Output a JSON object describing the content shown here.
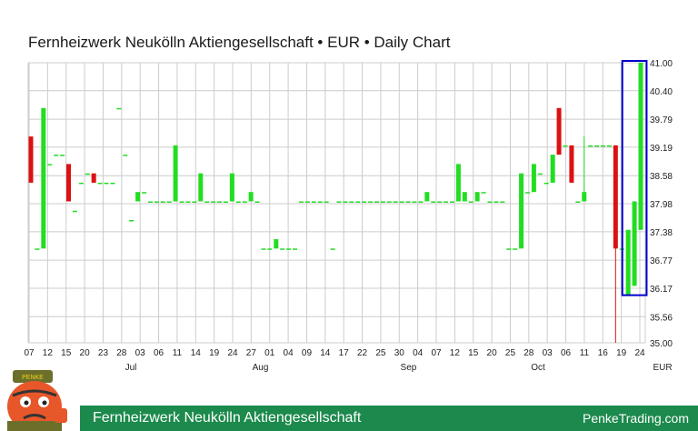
{
  "title": "Fernheizwerk Neukölln Aktiengesellschaft • EUR • Daily Chart",
  "footer": {
    "name": "Fernheizwerk Neukölln Aktiengesellschaft",
    "site": "PenkeTrading.com"
  },
  "mascot": {
    "icon": "mascot-character-icon",
    "hat_text": "PENKE"
  },
  "colors": {
    "up": "#22dd22",
    "down": "#dd1111",
    "grid": "#cccccc",
    "highlight": "#0000cc",
    "footer": "#1c8a4c"
  },
  "chart_data": {
    "type": "candlestick",
    "currency_label": "EUR",
    "ylim": [
      35.0,
      41.0
    ],
    "y_ticks": [
      "41.00",
      "40.40",
      "39.79",
      "39.19",
      "38.58",
      "37.98",
      "37.38",
      "36.77",
      "36.17",
      "35.56",
      "35.00"
    ],
    "x_tick_labels": [
      "07",
      "12",
      "15",
      "20",
      "23",
      "28",
      "03",
      "06",
      "11",
      "14",
      "19",
      "24",
      "27",
      "01",
      "04",
      "09",
      "14",
      "17",
      "22",
      "25",
      "30",
      "04",
      "07",
      "12",
      "15",
      "20",
      "25",
      "28",
      "03",
      "06",
      "11",
      "16",
      "19",
      "24"
    ],
    "month_labels": [
      {
        "label": "Jul",
        "after_tick": 6
      },
      {
        "label": "Aug",
        "after_tick": 13
      },
      {
        "label": "Sep",
        "after_tick": 21
      },
      {
        "label": "Oct",
        "after_tick": 28
      }
    ],
    "grid": true,
    "highlight_last_candles": 3,
    "candles": [
      {
        "o": 39.42,
        "c": 38.43,
        "h": 39.42,
        "l": 38.43
      },
      {
        "o": 37.02,
        "c": 37.02,
        "h": 37.02,
        "l": 37.02
      },
      {
        "o": 37.02,
        "c": 40.03,
        "h": 40.03,
        "l": 37.02
      },
      {
        "o": 38.83,
        "c": 38.83,
        "h": 38.83,
        "l": 38.83
      },
      {
        "o": 39.03,
        "c": 39.03,
        "h": 39.03,
        "l": 39.03
      },
      {
        "o": 39.03,
        "c": 39.03,
        "h": 39.03,
        "l": 39.03
      },
      {
        "o": 38.83,
        "c": 38.03,
        "h": 38.83,
        "l": 38.03
      },
      {
        "o": 37.83,
        "c": 37.83,
        "h": 37.83,
        "l": 37.83
      },
      {
        "o": 38.43,
        "c": 38.43,
        "h": 38.43,
        "l": 38.43
      },
      {
        "o": 38.63,
        "c": 38.63,
        "h": 38.63,
        "l": 38.63
      },
      {
        "o": 38.63,
        "c": 38.43,
        "h": 38.63,
        "l": 38.43
      },
      {
        "o": 38.43,
        "c": 38.43,
        "h": 38.43,
        "l": 38.43
      },
      {
        "o": 38.43,
        "c": 38.43,
        "h": 38.43,
        "l": 38.43
      },
      {
        "o": 38.43,
        "c": 38.43,
        "h": 38.43,
        "l": 38.43
      },
      {
        "o": 40.03,
        "c": 40.03,
        "h": 40.03,
        "l": 40.03
      },
      {
        "o": 39.03,
        "c": 39.03,
        "h": 39.03,
        "l": 39.03
      },
      {
        "o": 37.63,
        "c": 37.63,
        "h": 37.63,
        "l": 37.63
      },
      {
        "o": 38.03,
        "c": 38.23,
        "h": 38.23,
        "l": 38.03
      },
      {
        "o": 38.23,
        "c": 38.23,
        "h": 38.23,
        "l": 38.23
      },
      {
        "o": 38.03,
        "c": 38.03,
        "h": 38.03,
        "l": 38.03
      },
      {
        "o": 38.03,
        "c": 38.03,
        "h": 38.03,
        "l": 38.03
      },
      {
        "o": 38.03,
        "c": 38.03,
        "h": 38.03,
        "l": 38.03
      },
      {
        "o": 38.03,
        "c": 38.03,
        "h": 38.03,
        "l": 38.03
      },
      {
        "o": 38.03,
        "c": 39.23,
        "h": 39.23,
        "l": 38.03
      },
      {
        "o": 38.03,
        "c": 38.03,
        "h": 38.03,
        "l": 38.03
      },
      {
        "o": 38.03,
        "c": 38.03,
        "h": 38.03,
        "l": 38.03
      },
      {
        "o": 38.03,
        "c": 38.03,
        "h": 38.03,
        "l": 38.03
      },
      {
        "o": 38.03,
        "c": 38.63,
        "h": 38.63,
        "l": 38.03
      },
      {
        "o": 38.03,
        "c": 38.03,
        "h": 38.03,
        "l": 38.03
      },
      {
        "o": 38.03,
        "c": 38.03,
        "h": 38.03,
        "l": 38.03
      },
      {
        "o": 38.03,
        "c": 38.03,
        "h": 38.03,
        "l": 38.03
      },
      {
        "o": 38.03,
        "c": 38.03,
        "h": 38.03,
        "l": 38.03
      },
      {
        "o": 38.03,
        "c": 38.63,
        "h": 38.63,
        "l": 38.03
      },
      {
        "o": 38.03,
        "c": 38.03,
        "h": 38.03,
        "l": 38.03
      },
      {
        "o": 38.03,
        "c": 38.03,
        "h": 38.03,
        "l": 38.03
      },
      {
        "o": 38.03,
        "c": 38.23,
        "h": 38.23,
        "l": 38.03
      },
      {
        "o": 38.03,
        "c": 38.03,
        "h": 38.03,
        "l": 38.03
      },
      {
        "o": 37.02,
        "c": 37.02,
        "h": 37.02,
        "l": 37.02
      },
      {
        "o": 37.02,
        "c": 37.02,
        "h": 37.02,
        "l": 37.02
      },
      {
        "o": 37.02,
        "c": 37.22,
        "h": 37.22,
        "l": 37.02
      },
      {
        "o": 37.02,
        "c": 37.02,
        "h": 37.02,
        "l": 37.02
      },
      {
        "o": 37.02,
        "c": 37.02,
        "h": 37.02,
        "l": 37.02
      },
      {
        "o": 37.02,
        "c": 37.02,
        "h": 37.02,
        "l": 37.02
      },
      {
        "o": 38.03,
        "c": 38.03,
        "h": 38.03,
        "l": 38.03
      },
      {
        "o": 38.03,
        "c": 38.03,
        "h": 38.03,
        "l": 38.03
      },
      {
        "o": 38.03,
        "c": 38.03,
        "h": 38.03,
        "l": 38.03
      },
      {
        "o": 38.03,
        "c": 38.03,
        "h": 38.03,
        "l": 38.03
      },
      {
        "o": 38.03,
        "c": 38.03,
        "h": 38.03,
        "l": 38.03
      },
      {
        "o": 37.02,
        "c": 37.02,
        "h": 37.02,
        "l": 37.02
      },
      {
        "o": 38.03,
        "c": 38.03,
        "h": 38.03,
        "l": 38.03
      },
      {
        "o": 38.03,
        "c": 38.03,
        "h": 38.03,
        "l": 38.03
      },
      {
        "o": 38.03,
        "c": 38.03,
        "h": 38.03,
        "l": 38.03
      },
      {
        "o": 38.03,
        "c": 38.03,
        "h": 38.03,
        "l": 38.03
      },
      {
        "o": 38.03,
        "c": 38.03,
        "h": 38.03,
        "l": 38.03
      },
      {
        "o": 38.03,
        "c": 38.03,
        "h": 38.03,
        "l": 38.03
      },
      {
        "o": 38.03,
        "c": 38.03,
        "h": 38.03,
        "l": 38.03
      },
      {
        "o": 38.03,
        "c": 38.03,
        "h": 38.03,
        "l": 38.03
      },
      {
        "o": 38.03,
        "c": 38.03,
        "h": 38.03,
        "l": 38.03
      },
      {
        "o": 38.03,
        "c": 38.03,
        "h": 38.03,
        "l": 38.03
      },
      {
        "o": 38.03,
        "c": 38.03,
        "h": 38.03,
        "l": 38.03
      },
      {
        "o": 38.03,
        "c": 38.03,
        "h": 38.03,
        "l": 38.03
      },
      {
        "o": 38.03,
        "c": 38.03,
        "h": 38.03,
        "l": 38.03
      },
      {
        "o": 38.03,
        "c": 38.03,
        "h": 38.03,
        "l": 38.03
      },
      {
        "o": 38.03,
        "c": 38.23,
        "h": 38.23,
        "l": 38.03
      },
      {
        "o": 38.03,
        "c": 38.03,
        "h": 38.03,
        "l": 38.03
      },
      {
        "o": 38.03,
        "c": 38.03,
        "h": 38.03,
        "l": 38.03
      },
      {
        "o": 38.03,
        "c": 38.03,
        "h": 38.03,
        "l": 38.03
      },
      {
        "o": 38.03,
        "c": 38.03,
        "h": 38.03,
        "l": 38.03
      },
      {
        "o": 38.03,
        "c": 38.83,
        "h": 38.83,
        "l": 38.03
      },
      {
        "o": 38.03,
        "c": 38.23,
        "h": 38.23,
        "l": 38.03
      },
      {
        "o": 38.03,
        "c": 38.03,
        "h": 38.03,
        "l": 38.03
      },
      {
        "o": 38.03,
        "c": 38.23,
        "h": 38.23,
        "l": 38.03
      },
      {
        "o": 38.23,
        "c": 38.23,
        "h": 38.23,
        "l": 38.23
      },
      {
        "o": 38.03,
        "c": 38.03,
        "h": 38.03,
        "l": 38.03
      },
      {
        "o": 38.03,
        "c": 38.03,
        "h": 38.03,
        "l": 38.03
      },
      {
        "o": 38.03,
        "c": 38.03,
        "h": 38.03,
        "l": 38.03
      },
      {
        "o": 37.02,
        "c": 37.02,
        "h": 37.02,
        "l": 37.02
      },
      {
        "o": 37.02,
        "c": 37.02,
        "h": 37.02,
        "l": 37.02
      },
      {
        "o": 37.02,
        "c": 38.63,
        "h": 38.63,
        "l": 37.02
      },
      {
        "o": 38.23,
        "c": 38.23,
        "h": 38.23,
        "l": 38.23
      },
      {
        "o": 38.23,
        "c": 38.83,
        "h": 38.83,
        "l": 38.23
      },
      {
        "o": 38.63,
        "c": 38.63,
        "h": 38.63,
        "l": 38.63
      },
      {
        "o": 38.43,
        "c": 38.43,
        "h": 38.43,
        "l": 38.43
      },
      {
        "o": 38.43,
        "c": 39.03,
        "h": 39.03,
        "l": 38.43
      },
      {
        "o": 40.03,
        "c": 39.03,
        "h": 40.03,
        "l": 39.03
      },
      {
        "o": 39.23,
        "c": 39.23,
        "h": 39.23,
        "l": 39.23
      },
      {
        "o": 39.23,
        "c": 38.43,
        "h": 39.23,
        "l": 38.43
      },
      {
        "o": 38.03,
        "c": 38.03,
        "h": 38.03,
        "l": 38.03
      },
      {
        "o": 38.03,
        "c": 38.23,
        "h": 39.42,
        "l": 38.03
      },
      {
        "o": 39.23,
        "c": 39.23,
        "h": 39.23,
        "l": 39.23
      },
      {
        "o": 39.23,
        "c": 39.23,
        "h": 39.23,
        "l": 39.23
      },
      {
        "o": 39.23,
        "c": 39.23,
        "h": 39.23,
        "l": 39.23
      },
      {
        "o": 39.23,
        "c": 39.23,
        "h": 39.23,
        "l": 39.23
      },
      {
        "o": 39.23,
        "c": 37.02,
        "h": 39.23,
        "l": 35.0
      },
      {
        "o": 37.02,
        "c": 37.02,
        "h": 37.02,
        "l": 37.02
      },
      {
        "o": 36.02,
        "c": 37.42,
        "h": 37.42,
        "l": 36.02
      },
      {
        "o": 36.22,
        "c": 38.03,
        "h": 38.03,
        "l": 36.22
      },
      {
        "o": 37.42,
        "c": 41.0,
        "h": 41.0,
        "l": 37.42
      }
    ]
  }
}
